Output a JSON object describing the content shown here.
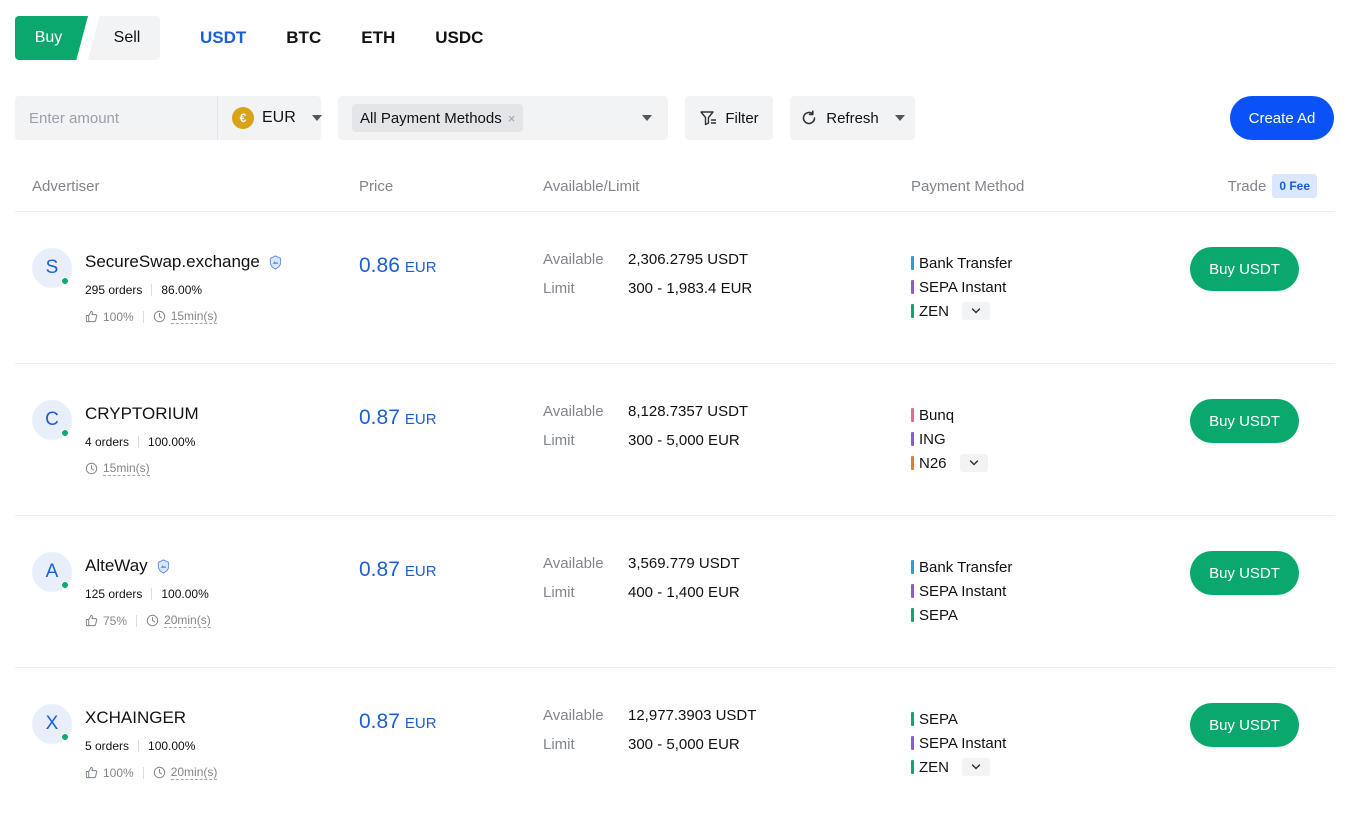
{
  "side_tabs": {
    "buy": "Buy",
    "sell": "Sell"
  },
  "coins": [
    "USDT",
    "BTC",
    "ETH",
    "USDC"
  ],
  "filters": {
    "amount_placeholder": "Enter amount",
    "currency": "EUR",
    "currency_icon": "€",
    "payment_chip": "All Payment Methods",
    "chip_close": "×",
    "filter_label": "Filter",
    "refresh_label": "Refresh",
    "create_ad_label": "Create Ad"
  },
  "table_header": {
    "advertiser": "Advertiser",
    "price": "Price",
    "available_limit": "Available/Limit",
    "payment_method": "Payment Method",
    "trade": "Trade",
    "fee_badge": "0 Fee"
  },
  "labels": {
    "available": "Available",
    "limit": "Limit"
  },
  "colors": {
    "buy_green": "#0aa86d",
    "link_blue": "#1a5fd6",
    "create_ad_blue": "#0952f5",
    "pm_blue": "#2e9bdc",
    "pm_purple": "#8a5bd8",
    "pm_green": "#0aa86d",
    "pm_pink": "#e86a8a",
    "pm_orange": "#e8792a"
  },
  "rows": [
    {
      "initial": "S",
      "name": "SecureSwap.exchange",
      "verified": true,
      "orders": "295 orders",
      "completion": "86.00%",
      "rating": "100%",
      "time": "15min(s)",
      "price": "0.86",
      "price_currency": "EUR",
      "available": "2,306.2795 USDT",
      "limit": "300 - 1,983.4 EUR",
      "payments": [
        {
          "name": "Bank Transfer",
          "color": "#2e9bdc"
        },
        {
          "name": "SEPA Instant",
          "color": "#8a5bd8"
        },
        {
          "name": "ZEN",
          "color": "#0aa86d"
        }
      ],
      "has_more": true,
      "buy_label": "Buy USDT"
    },
    {
      "initial": "C",
      "name": "CRYPTORIUM",
      "verified": false,
      "orders": "4 orders",
      "completion": "100.00%",
      "rating": null,
      "time": "15min(s)",
      "price": "0.87",
      "price_currency": "EUR",
      "available": "8,128.7357 USDT",
      "limit": "300 - 5,000 EUR",
      "payments": [
        {
          "name": "Bunq",
          "color": "#e86a8a"
        },
        {
          "name": "ING",
          "color": "#8a5bd8"
        },
        {
          "name": "N26",
          "color": "#e8792a"
        }
      ],
      "has_more": true,
      "buy_label": "Buy USDT"
    },
    {
      "initial": "A",
      "name": "AlteWay",
      "verified": true,
      "orders": "125 orders",
      "completion": "100.00%",
      "rating": "75%",
      "time": "20min(s)",
      "price": "0.87",
      "price_currency": "EUR",
      "available": "3,569.779 USDT",
      "limit": "400 - 1,400 EUR",
      "payments": [
        {
          "name": "Bank Transfer",
          "color": "#2e9bdc"
        },
        {
          "name": "SEPA Instant",
          "color": "#8a5bd8"
        },
        {
          "name": "SEPA",
          "color": "#0aa86d"
        }
      ],
      "has_more": false,
      "buy_label": "Buy USDT"
    },
    {
      "initial": "X",
      "name": "XCHAINGER",
      "verified": false,
      "orders": "5 orders",
      "completion": "100.00%",
      "rating": "100%",
      "time": "20min(s)",
      "price": "0.87",
      "price_currency": "EUR",
      "available": "12,977.3903 USDT",
      "limit": "300 - 5,000 EUR",
      "payments": [
        {
          "name": "SEPA",
          "color": "#0aa86d"
        },
        {
          "name": "SEPA Instant",
          "color": "#8a5bd8"
        },
        {
          "name": "ZEN",
          "color": "#0aa86d"
        }
      ],
      "has_more": true,
      "buy_label": "Buy USDT"
    }
  ]
}
